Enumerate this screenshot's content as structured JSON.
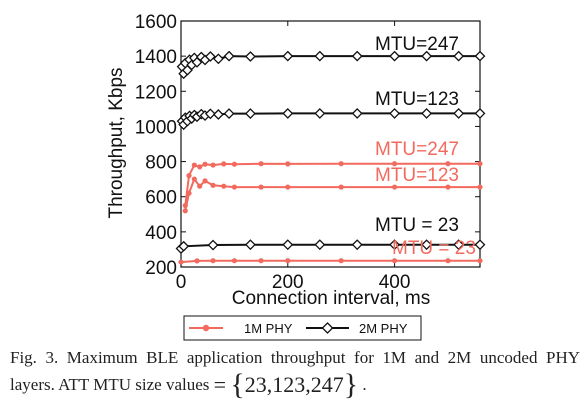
{
  "chart_data": {
    "type": "line",
    "xlabel": "Connection interval, ms",
    "ylabel": "Throughput, Kbps",
    "xlim": [
      0,
      560
    ],
    "ylim": [
      200,
      1600
    ],
    "xticks": [
      0,
      200,
      400
    ],
    "yticks": [
      200,
      400,
      600,
      800,
      1000,
      1200,
      1400,
      1600
    ],
    "grid": false,
    "legend_position": "bottom",
    "legend": [
      "1M PHY",
      "2M PHY"
    ],
    "series": [
      {
        "group": "1M PHY",
        "mtu_label": "MTU=247",
        "color": "#f26a5e",
        "x": [
          8,
          15,
          25,
          35,
          45,
          60,
          80,
          100,
          150,
          200,
          300,
          400,
          500,
          560
        ],
        "y": [
          550,
          720,
          780,
          770,
          785,
          780,
          787,
          785,
          788,
          787,
          788,
          788,
          788,
          788
        ]
      },
      {
        "group": "1M PHY",
        "mtu_label": "MTU=123",
        "color": "#f26a5e",
        "x": [
          8,
          15,
          25,
          35,
          45,
          60,
          80,
          100,
          150,
          200,
          300,
          400,
          500,
          560
        ],
        "y": [
          520,
          620,
          700,
          660,
          690,
          665,
          660,
          655,
          655,
          655,
          655,
          655,
          655,
          655
        ]
      },
      {
        "group": "1M PHY",
        "mtu_label": "MTU = 23",
        "color": "#f26a5e",
        "x": [
          0,
          30,
          60,
          100,
          150,
          200,
          300,
          400,
          500,
          560
        ],
        "y": [
          228,
          235,
          236,
          236,
          236,
          236,
          236,
          236,
          236,
          236
        ]
      },
      {
        "group": "2M PHY",
        "mtu_label": "MTU=247",
        "color": "#111111",
        "x": [
          2,
          5,
          8,
          12,
          16,
          20,
          25,
          30,
          38,
          45,
          55,
          70,
          90,
          130,
          200,
          260,
          330,
          400,
          460,
          520,
          560
        ],
        "y": [
          1340,
          1300,
          1360,
          1320,
          1380,
          1350,
          1390,
          1365,
          1395,
          1378,
          1398,
          1385,
          1400,
          1398,
          1400,
          1400,
          1400,
          1400,
          1400,
          1400,
          1400
        ]
      },
      {
        "group": "2M PHY",
        "mtu_label": "MTU=123",
        "color": "#111111",
        "x": [
          2,
          5,
          8,
          12,
          16,
          20,
          25,
          30,
          38,
          45,
          55,
          70,
          90,
          130,
          200,
          260,
          330,
          400,
          460,
          520,
          560
        ],
        "y": [
          1030,
          1010,
          1050,
          1030,
          1060,
          1045,
          1065,
          1055,
          1070,
          1062,
          1072,
          1068,
          1073,
          1073,
          1074,
          1074,
          1074,
          1074,
          1074,
          1074,
          1074
        ]
      },
      {
        "group": "2M PHY",
        "mtu_label": "MTU = 23",
        "color": "#111111",
        "x": [
          0,
          5,
          60,
          130,
          200,
          260,
          330,
          400,
          460,
          520,
          560
        ],
        "y": [
          305,
          318,
          325,
          327,
          327,
          327,
          327,
          327,
          327,
          327,
          327
        ]
      }
    ]
  },
  "caption": {
    "text": "Fig. 3. Maximum BLE application throughput for 1M and 2M uncoded PHY layers. ATT MTU size values",
    "equals": "=",
    "set_values": "23,123,247",
    "trailing": "."
  },
  "colors": {
    "one_m_phy": "#f26a5e",
    "two_m_phy": "#111111"
  }
}
